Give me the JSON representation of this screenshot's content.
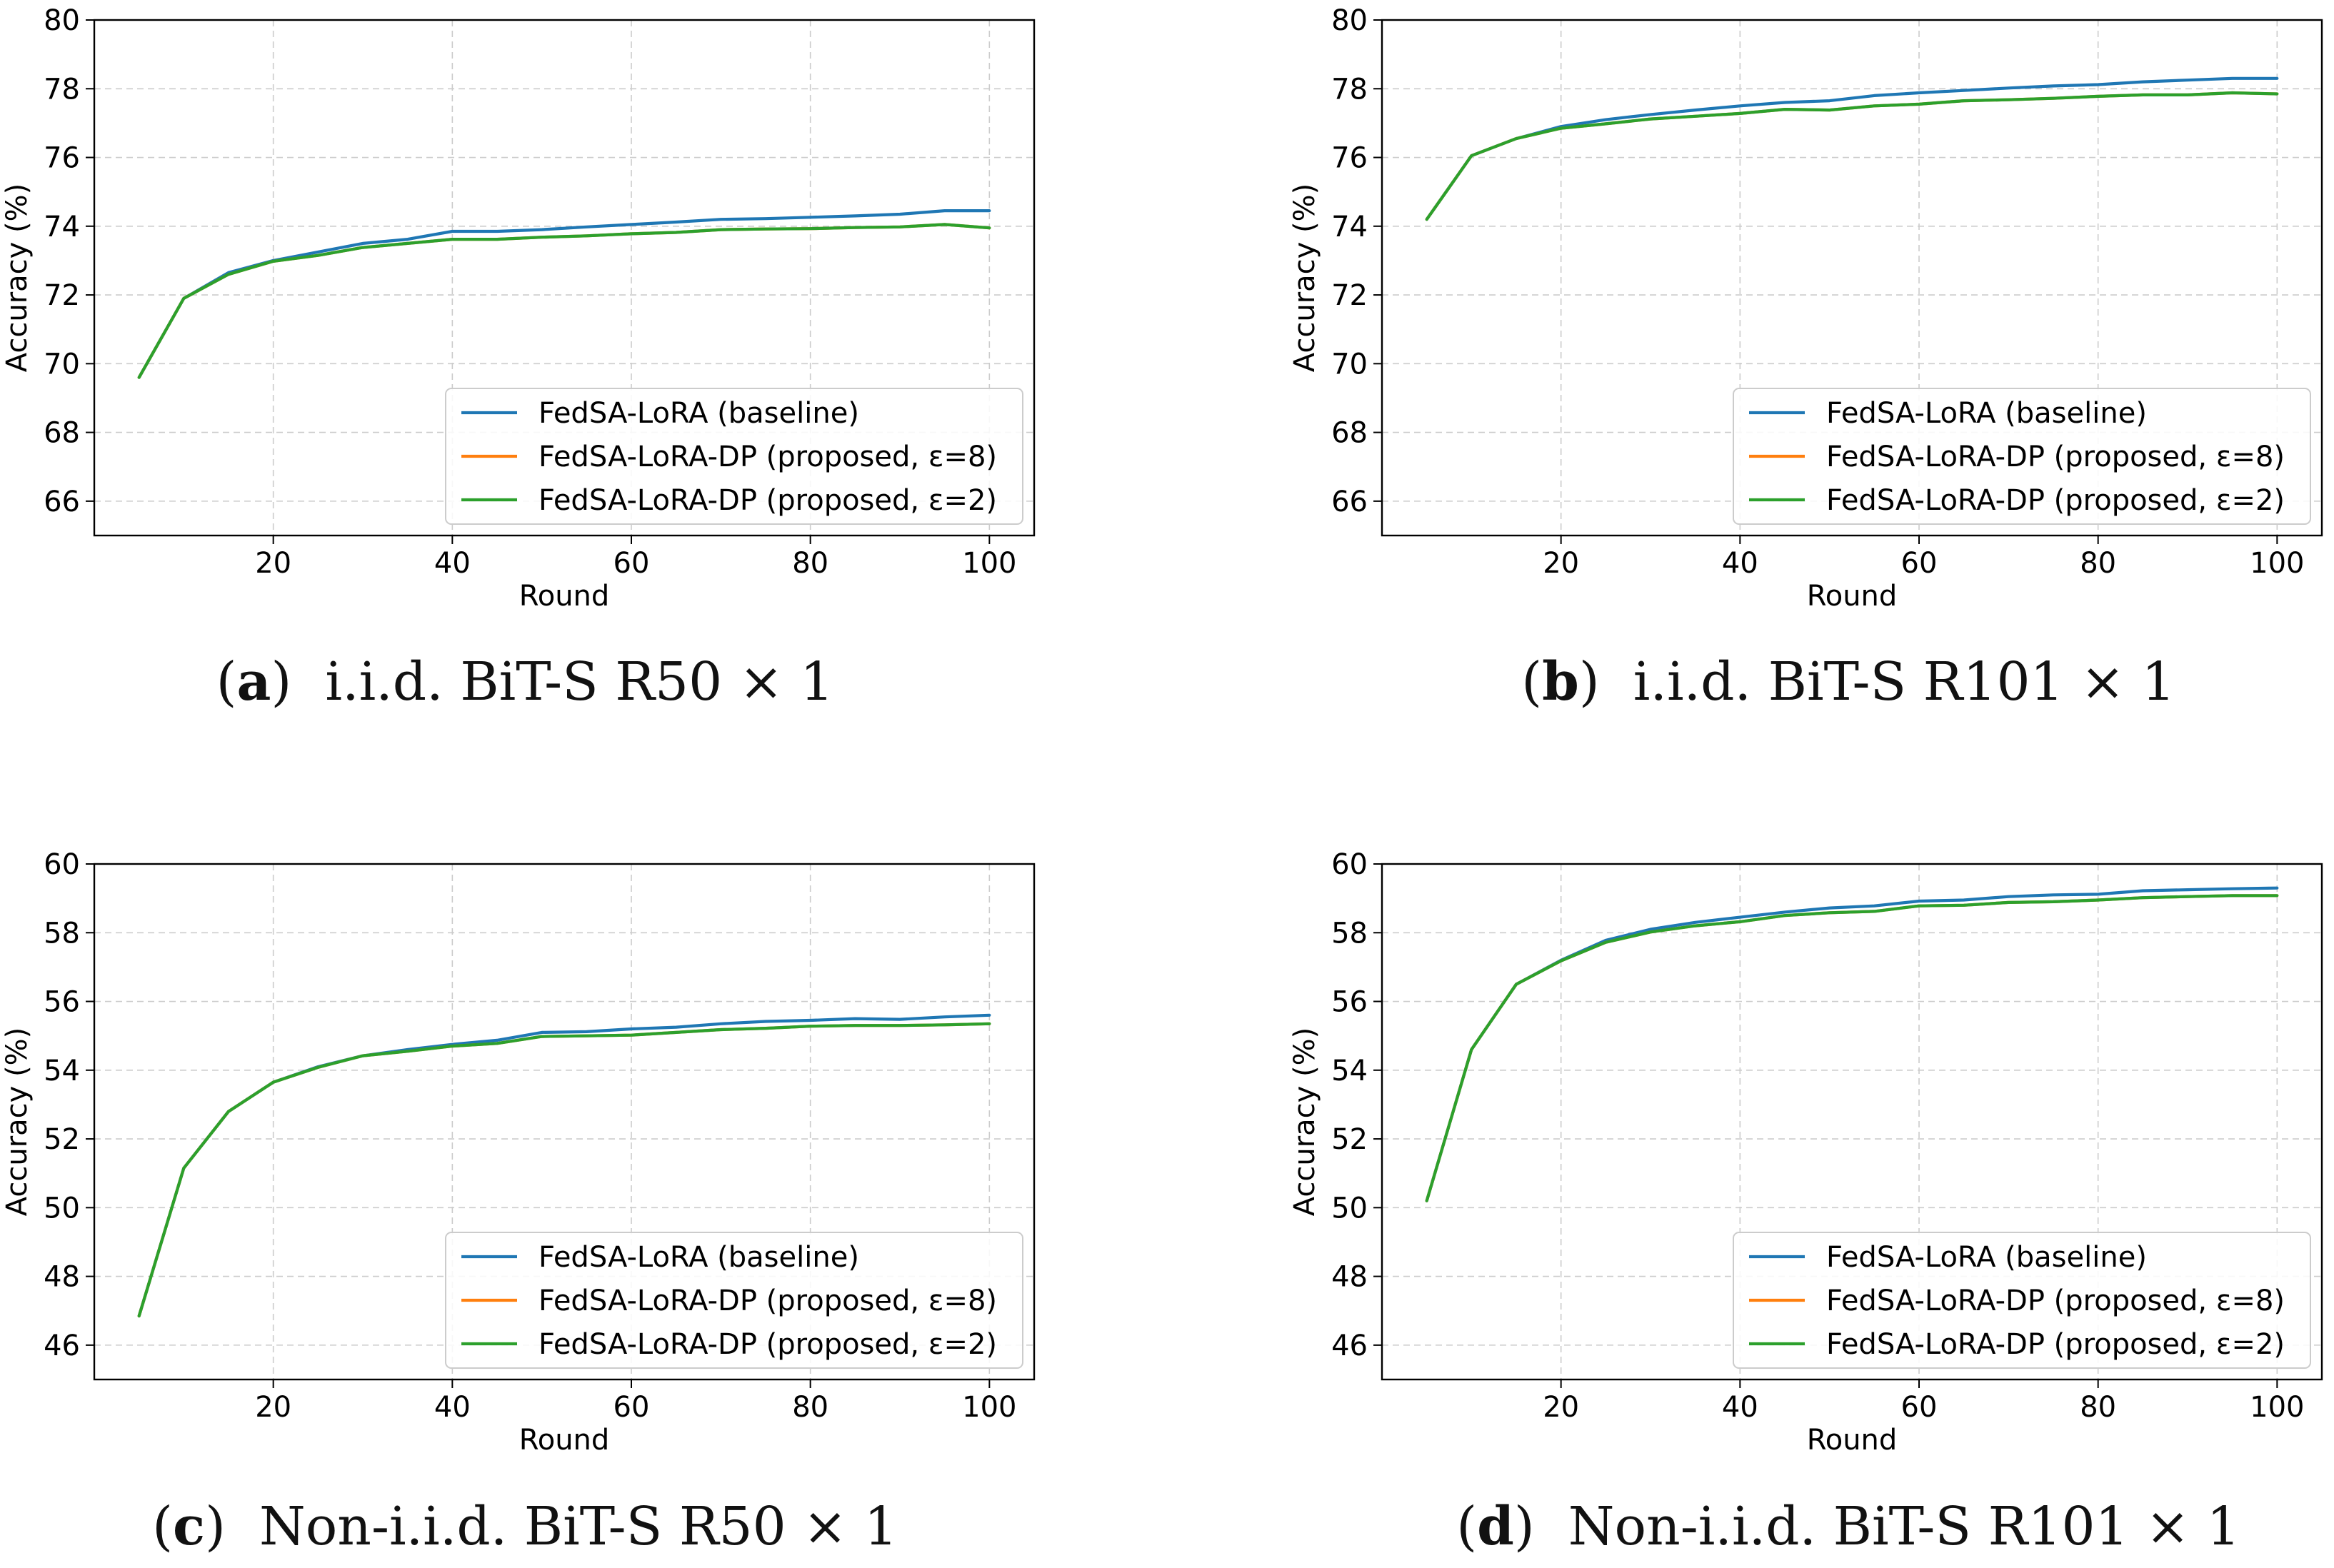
{
  "figure": {
    "captions": [
      {
        "label": "a",
        "text": "i.i.d. BiT-S R50 × 1"
      },
      {
        "label": "b",
        "text": "i.i.d. BiT-S R101 × 1"
      },
      {
        "label": "c",
        "text": "Non-i.i.d. BiT-S R50 × 1"
      },
      {
        "label": "d",
        "text": "Non-i.i.d. BiT-S R101 × 1"
      }
    ]
  },
  "colors": {
    "baseline": "#1f77b4",
    "eps8": "#ff7f0e",
    "eps2": "#2ca02c",
    "grid": "#cccccc"
  },
  "chart_data": [
    {
      "type": "line",
      "title": "",
      "xlabel": "Round",
      "ylabel": "Accuracy (%)",
      "xlim": [
        0,
        105
      ],
      "ylim": [
        65,
        80
      ],
      "xticks": [
        20,
        40,
        60,
        80,
        100
      ],
      "yticks": [
        66,
        68,
        70,
        72,
        74,
        76,
        78,
        80
      ],
      "grid": true,
      "legend_position": "lower-right",
      "x": [
        5,
        10,
        15,
        20,
        25,
        30,
        35,
        40,
        45,
        50,
        55,
        60,
        65,
        70,
        75,
        80,
        85,
        90,
        95,
        100
      ],
      "series": [
        {
          "name": "FedSA-LoRA (baseline)",
          "color": "#1f77b4",
          "values": [
            69.6,
            71.9,
            72.65,
            73.0,
            73.25,
            73.5,
            73.62,
            73.85,
            73.85,
            73.9,
            73.98,
            74.05,
            74.12,
            74.2,
            74.22,
            74.26,
            74.3,
            74.35,
            74.45,
            74.45
          ]
        },
        {
          "name": "FedSA-LoRA-DP (proposed, ε=8)",
          "color": "#ff7f0e",
          "values": [
            69.6,
            71.9,
            72.6,
            72.98,
            73.15,
            73.38,
            73.5,
            73.62,
            73.62,
            73.68,
            73.72,
            73.78,
            73.82,
            73.9,
            73.92,
            73.93,
            73.96,
            73.98,
            74.05,
            73.95
          ]
        },
        {
          "name": "FedSA-LoRA-DP (proposed, ε=2)",
          "color": "#2ca02c",
          "values": [
            69.6,
            71.9,
            72.6,
            72.98,
            73.15,
            73.38,
            73.5,
            73.62,
            73.62,
            73.68,
            73.72,
            73.78,
            73.82,
            73.9,
            73.92,
            73.93,
            73.96,
            73.98,
            74.05,
            73.95
          ]
        }
      ]
    },
    {
      "type": "line",
      "title": "",
      "xlabel": "Round",
      "ylabel": "Accuracy (%)",
      "xlim": [
        0,
        105
      ],
      "ylim": [
        65,
        80
      ],
      "xticks": [
        20,
        40,
        60,
        80,
        100
      ],
      "yticks": [
        66,
        68,
        70,
        72,
        74,
        76,
        78,
        80
      ],
      "grid": true,
      "legend_position": "lower-right",
      "x": [
        5,
        10,
        15,
        20,
        25,
        30,
        35,
        40,
        45,
        50,
        55,
        60,
        65,
        70,
        75,
        80,
        85,
        90,
        95,
        100
      ],
      "series": [
        {
          "name": "FedSA-LoRA (baseline)",
          "color": "#1f77b4",
          "values": [
            74.2,
            76.05,
            76.55,
            76.9,
            77.1,
            77.25,
            77.38,
            77.5,
            77.6,
            77.65,
            77.8,
            77.88,
            77.95,
            78.02,
            78.08,
            78.12,
            78.2,
            78.25,
            78.3,
            78.3
          ]
        },
        {
          "name": "FedSA-LoRA-DP (proposed, ε=8)",
          "color": "#ff7f0e",
          "values": [
            74.2,
            76.05,
            76.55,
            76.85,
            76.98,
            77.12,
            77.2,
            77.28,
            77.4,
            77.38,
            77.5,
            77.55,
            77.65,
            77.68,
            77.72,
            77.78,
            77.82,
            77.82,
            77.88,
            77.85
          ]
        },
        {
          "name": "FedSA-LoRA-DP (proposed, ε=2)",
          "color": "#2ca02c",
          "values": [
            74.2,
            76.05,
            76.55,
            76.85,
            76.98,
            77.12,
            77.2,
            77.28,
            77.4,
            77.38,
            77.5,
            77.55,
            77.65,
            77.68,
            77.72,
            77.78,
            77.82,
            77.82,
            77.88,
            77.85
          ]
        }
      ]
    },
    {
      "type": "line",
      "title": "",
      "xlabel": "Round",
      "ylabel": "Accuracy (%)",
      "xlim": [
        0,
        105
      ],
      "ylim": [
        45,
        60
      ],
      "xticks": [
        20,
        40,
        60,
        80,
        100
      ],
      "yticks": [
        46,
        48,
        50,
        52,
        54,
        56,
        58,
        60
      ],
      "grid": true,
      "legend_position": "lower-right",
      "x": [
        5,
        10,
        15,
        20,
        25,
        30,
        35,
        40,
        45,
        50,
        55,
        60,
        65,
        70,
        75,
        80,
        85,
        90,
        95,
        100
      ],
      "series": [
        {
          "name": "FedSA-LoRA (baseline)",
          "color": "#1f77b4",
          "values": [
            46.85,
            51.15,
            52.8,
            53.65,
            54.1,
            54.42,
            54.6,
            54.75,
            54.87,
            55.1,
            55.12,
            55.2,
            55.25,
            55.35,
            55.42,
            55.45,
            55.5,
            55.48,
            55.55,
            55.6
          ]
        },
        {
          "name": "FedSA-LoRA-DP (proposed, ε=8)",
          "color": "#ff7f0e",
          "values": [
            46.85,
            51.15,
            52.8,
            53.65,
            54.08,
            54.42,
            54.55,
            54.7,
            54.78,
            54.98,
            55.0,
            55.02,
            55.1,
            55.18,
            55.22,
            55.28,
            55.3,
            55.3,
            55.32,
            55.35
          ]
        },
        {
          "name": "FedSA-LoRA-DP (proposed, ε=2)",
          "color": "#2ca02c",
          "values": [
            46.85,
            51.15,
            52.8,
            53.65,
            54.08,
            54.42,
            54.55,
            54.7,
            54.78,
            54.98,
            55.0,
            55.02,
            55.1,
            55.18,
            55.22,
            55.28,
            55.3,
            55.3,
            55.32,
            55.35
          ]
        }
      ]
    },
    {
      "type": "line",
      "title": "",
      "xlabel": "Round",
      "ylabel": "Accuracy (%)",
      "xlim": [
        0,
        105
      ],
      "ylim": [
        45,
        60
      ],
      "xticks": [
        20,
        40,
        60,
        80,
        100
      ],
      "yticks": [
        46,
        48,
        50,
        52,
        54,
        56,
        58,
        60
      ],
      "grid": true,
      "legend_position": "lower-right",
      "x": [
        5,
        10,
        15,
        20,
        25,
        30,
        35,
        40,
        45,
        50,
        55,
        60,
        65,
        70,
        75,
        80,
        85,
        90,
        95,
        100
      ],
      "series": [
        {
          "name": "FedSA-LoRA (baseline)",
          "color": "#1f77b4",
          "values": [
            50.2,
            54.6,
            56.5,
            57.2,
            57.78,
            58.1,
            58.3,
            58.45,
            58.6,
            58.72,
            58.78,
            58.92,
            58.95,
            59.05,
            59.1,
            59.12,
            59.22,
            59.25,
            59.28,
            59.3
          ]
        },
        {
          "name": "FedSA-LoRA-DP (proposed, ε=8)",
          "color": "#ff7f0e",
          "values": [
            50.2,
            54.6,
            56.5,
            57.18,
            57.72,
            58.02,
            58.2,
            58.32,
            58.5,
            58.58,
            58.62,
            58.78,
            58.8,
            58.88,
            58.9,
            58.95,
            59.02,
            59.05,
            59.08,
            59.08
          ]
        },
        {
          "name": "FedSA-LoRA-DP (proposed, ε=2)",
          "color": "#2ca02c",
          "values": [
            50.2,
            54.6,
            56.5,
            57.18,
            57.72,
            58.02,
            58.2,
            58.32,
            58.5,
            58.58,
            58.62,
            58.78,
            58.8,
            58.88,
            58.9,
            58.95,
            59.02,
            59.05,
            59.08,
            59.08
          ]
        }
      ]
    }
  ]
}
